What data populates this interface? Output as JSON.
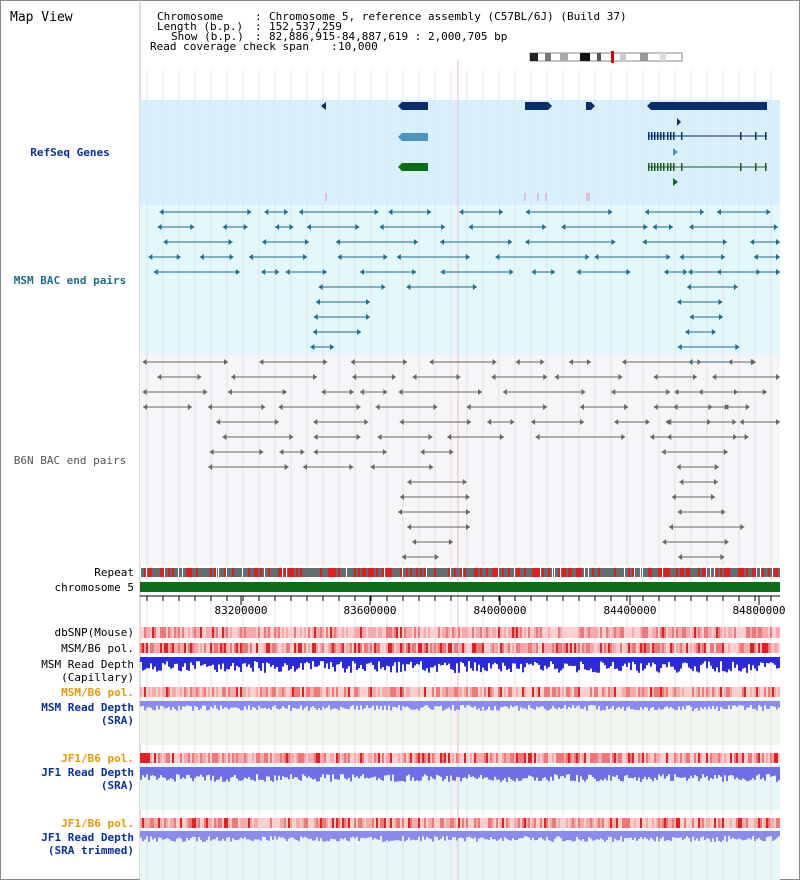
{
  "view": {
    "title": "Map View",
    "info": [
      {
        "label": "Chromosome",
        "value": "Chromosome 5, reference assembly (C57BL/6J) (Build 37)"
      },
      {
        "label": "Length (b.p.)",
        "value": "152,537,259"
      },
      {
        "label": "Show (b.p.)",
        "value": "82,886,915-84,887,619 : 2,000,705 bp"
      },
      {
        "label": "Read coverage check span",
        "value": "10,000"
      }
    ]
  },
  "tracks": {
    "refseq": "RefSeq Genes",
    "msm_bac": "MSM BAC end pairs",
    "b6n_bac": "B6N BAC end pairs",
    "repeat": "Repeat",
    "chromosome": "chromosome 5",
    "dbsnp": "dbSNP(Mouse)",
    "msm_pol": "MSM/B6 pol.",
    "msm_depth_cap_1": "MSM Read Depth",
    "msm_depth_cap_2": "(Capillary)",
    "msm_pol_sra": "MSM/B6 pol.",
    "msm_depth_sra_1": "MSM Read Depth",
    "msm_depth_sra_2": "(SRA)",
    "jf1_pol_1": "JF1/B6 pol.",
    "jf1_depth_1": "JF1 Read Depth",
    "jf1_depth_1b": "(SRA)",
    "jf1_pol_2": "JF1/B6 pol.",
    "jf1_depth_2": "JF1 Read Depth",
    "jf1_depth_2b": "(SRA trimmed)"
  },
  "axis": {
    "ticks": [
      "83200000",
      "83600000",
      "84000000",
      "84400000",
      "84800000"
    ]
  },
  "colors": {
    "refseq_bg": "#d8f0fb",
    "msm_bg": "#e4f8fc",
    "gene_dark": "#0a2d6e",
    "gene_light": "#4a96c0",
    "gene_green": "#0a6e14",
    "msm_line": "#1d6d8d",
    "b6n_line": "#666666",
    "chromosome_green": "#0a6e14",
    "repeat_red": "#e02020",
    "depth_blue": "#2a2adc",
    "depth_light": "#8a8af0",
    "label_blue": "#0a2fa0",
    "label_orange": "#e69a00",
    "label_teal": "#1d6d8d"
  }
}
